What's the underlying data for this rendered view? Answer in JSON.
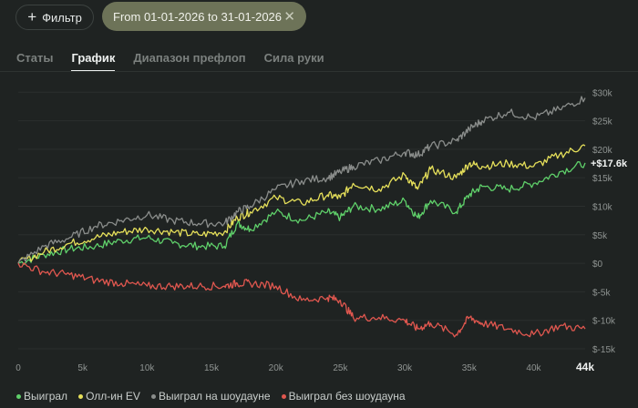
{
  "filter": {
    "label": "Фильтр",
    "icon": "plus-icon"
  },
  "date_filter": {
    "label": "From 01-01-2026 to 31-01-2026",
    "close_icon": "close-icon"
  },
  "tabs": [
    {
      "label": "Статы",
      "active": false
    },
    {
      "label": "График",
      "active": true
    },
    {
      "label": "Диапазон префлоп",
      "active": false
    },
    {
      "label": "Сила руки",
      "active": false
    }
  ],
  "chart_data": {
    "type": "line",
    "xlabel": "",
    "ylabel": "",
    "x_ticks": [
      "0",
      "5k",
      "10k",
      "15k",
      "20k",
      "25k",
      "30k",
      "35k",
      "40k"
    ],
    "x_end_label": "44k",
    "xlim": [
      0,
      44000
    ],
    "y_ticks": [
      "$30k",
      "$25k",
      "$20k",
      "$15k",
      "$10k",
      "$5k",
      "$0",
      "$-5k",
      "$-10k",
      "$-15k"
    ],
    "ylim": [
      -15000,
      31000
    ],
    "current_value_label": "+$17.6k",
    "series": [
      {
        "name": "Выиграл",
        "color": "#5fd06a",
        "x": [
          0,
          2000,
          4000,
          6000,
          8000,
          10000,
          12000,
          14000,
          16000,
          17000,
          18000,
          20000,
          22000,
          24000,
          25000,
          26000,
          28000,
          30000,
          31000,
          32000,
          34000,
          35000,
          36000,
          38000,
          40000,
          42000,
          44000
        ],
        "y": [
          0,
          1500,
          2500,
          3000,
          4000,
          4500,
          3500,
          3000,
          3000,
          7000,
          6000,
          9000,
          7500,
          9000,
          8000,
          10000,
          9500,
          11000,
          8000,
          11000,
          9000,
          12000,
          13500,
          13000,
          14000,
          16000,
          17600
        ]
      },
      {
        "name": "Олл-ин EV",
        "color": "#e6e05a",
        "x": [
          0,
          2000,
          4000,
          6000,
          8000,
          10000,
          12000,
          14000,
          16000,
          17000,
          18000,
          20000,
          22000,
          24000,
          25000,
          26000,
          28000,
          30000,
          31000,
          32000,
          34000,
          35000,
          36000,
          38000,
          40000,
          42000,
          44000
        ],
        "y": [
          0,
          2000,
          3500,
          4500,
          5500,
          6000,
          5500,
          5000,
          5500,
          8000,
          9000,
          11500,
          10500,
          12000,
          11500,
          14000,
          13000,
          15500,
          13000,
          16500,
          15000,
          17500,
          17000,
          17500,
          17000,
          19000,
          20600
        ]
      },
      {
        "name": "Выиграл на шоудауне",
        "color": "#8a8d8b",
        "x": [
          0,
          2000,
          4000,
          6000,
          8000,
          10000,
          12000,
          14000,
          16000,
          17000,
          18000,
          20000,
          22000,
          24000,
          25000,
          26000,
          28000,
          30000,
          31000,
          32000,
          34000,
          35000,
          36000,
          38000,
          40000,
          42000,
          44000
        ],
        "y": [
          0,
          3000,
          4500,
          6500,
          7500,
          8500,
          7500,
          7000,
          7000,
          9000,
          10000,
          13000,
          14500,
          15000,
          16000,
          17000,
          18000,
          19500,
          19000,
          20500,
          21500,
          23500,
          25000,
          26500,
          25500,
          27000,
          29000
        ]
      },
      {
        "name": "Выиграл без шоудауна",
        "color": "#e0574f",
        "x": [
          0,
          2000,
          4000,
          6000,
          8000,
          10000,
          12000,
          14000,
          16000,
          17000,
          18000,
          20000,
          22000,
          24000,
          25000,
          26000,
          28000,
          30000,
          31000,
          32000,
          34000,
          35000,
          36000,
          38000,
          40000,
          42000,
          44000
        ],
        "y": [
          0,
          -1500,
          -2000,
          -3000,
          -3500,
          -4000,
          -4000,
          -4000,
          -4000,
          -3500,
          -3500,
          -4000,
          -6500,
          -6000,
          -6500,
          -9500,
          -9500,
          -10000,
          -11500,
          -10500,
          -12500,
          -9500,
          -10500,
          -11500,
          -12500,
          -11000,
          -11500
        ]
      }
    ]
  }
}
